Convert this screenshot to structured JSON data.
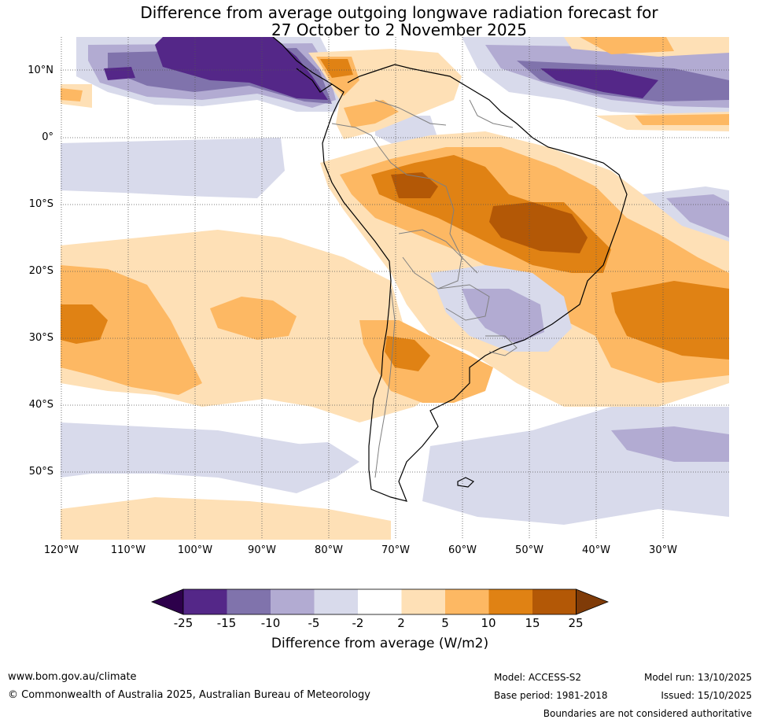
{
  "title": {
    "line1": "Difference from average outgoing longwave radiation forecast for",
    "line2": "27 October to 2 November 2025"
  },
  "axes": {
    "lat_labels": [
      "10°N",
      "0°",
      "10°S",
      "20°S",
      "30°S",
      "40°S",
      "50°S"
    ],
    "lon_labels": [
      "120°W",
      "110°W",
      "100°W",
      "90°W",
      "80°W",
      "70°W",
      "60°W",
      "50°W",
      "40°W",
      "30°W"
    ]
  },
  "colorbar": {
    "ticks": [
      "-25",
      "-15",
      "-10",
      "-5",
      "-2",
      "2",
      "5",
      "10",
      "15",
      "25"
    ],
    "label": "Difference from average (W/m2)",
    "colors": [
      "#2d004b",
      "#542788",
      "#8073ac",
      "#b2abd2",
      "#d8daeb",
      "#ffffff",
      "#fee0b6",
      "#fdb863",
      "#e08214",
      "#b35806",
      "#7f3b08"
    ]
  },
  "footer": {
    "website": "www.bom.gov.au/climate",
    "copyright": "© Commonwealth of Australia 2025, Australian Bureau of Meteorology",
    "model": "Model: ACCESS-S2",
    "base_period": "Base period: 1981-2018",
    "model_run": "Model run: 13/10/2025",
    "issued": "Issued: 15/10/2025",
    "disclaimer": "Boundaries are not considered authoritative"
  }
}
